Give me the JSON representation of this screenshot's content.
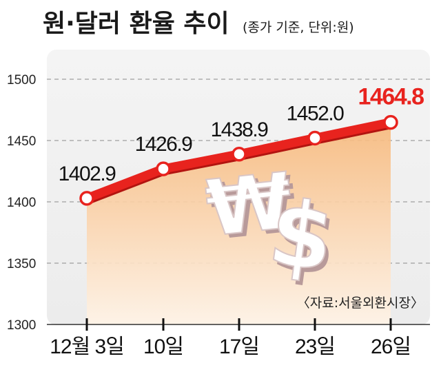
{
  "title": "원·달러 환율 추이",
  "subtitle": "(종가 기준, 단위:원)",
  "source": "〈자료:서울외환시장〉",
  "colors": {
    "line": "#e8231e",
    "highlight": "#e8231e",
    "area_top": "#f7b87a",
    "area_bottom": "#fff3e6",
    "panel": "#f2f2f2"
  },
  "chart_data": {
    "type": "line",
    "categories": [
      "12월 3일",
      "10일",
      "17일",
      "23일",
      "26일"
    ],
    "values": [
      1402.9,
      1426.9,
      1438.9,
      1452.0,
      1464.8
    ],
    "value_labels": [
      "1402.9",
      "1426.9",
      "1438.9",
      "1452.0",
      "1464.8"
    ],
    "highlight_index": 4,
    "y_ticks": [
      1300,
      1350,
      1400,
      1450,
      1500
    ],
    "ylim": [
      1300,
      1500
    ],
    "grid": true,
    "area_fill": true
  }
}
